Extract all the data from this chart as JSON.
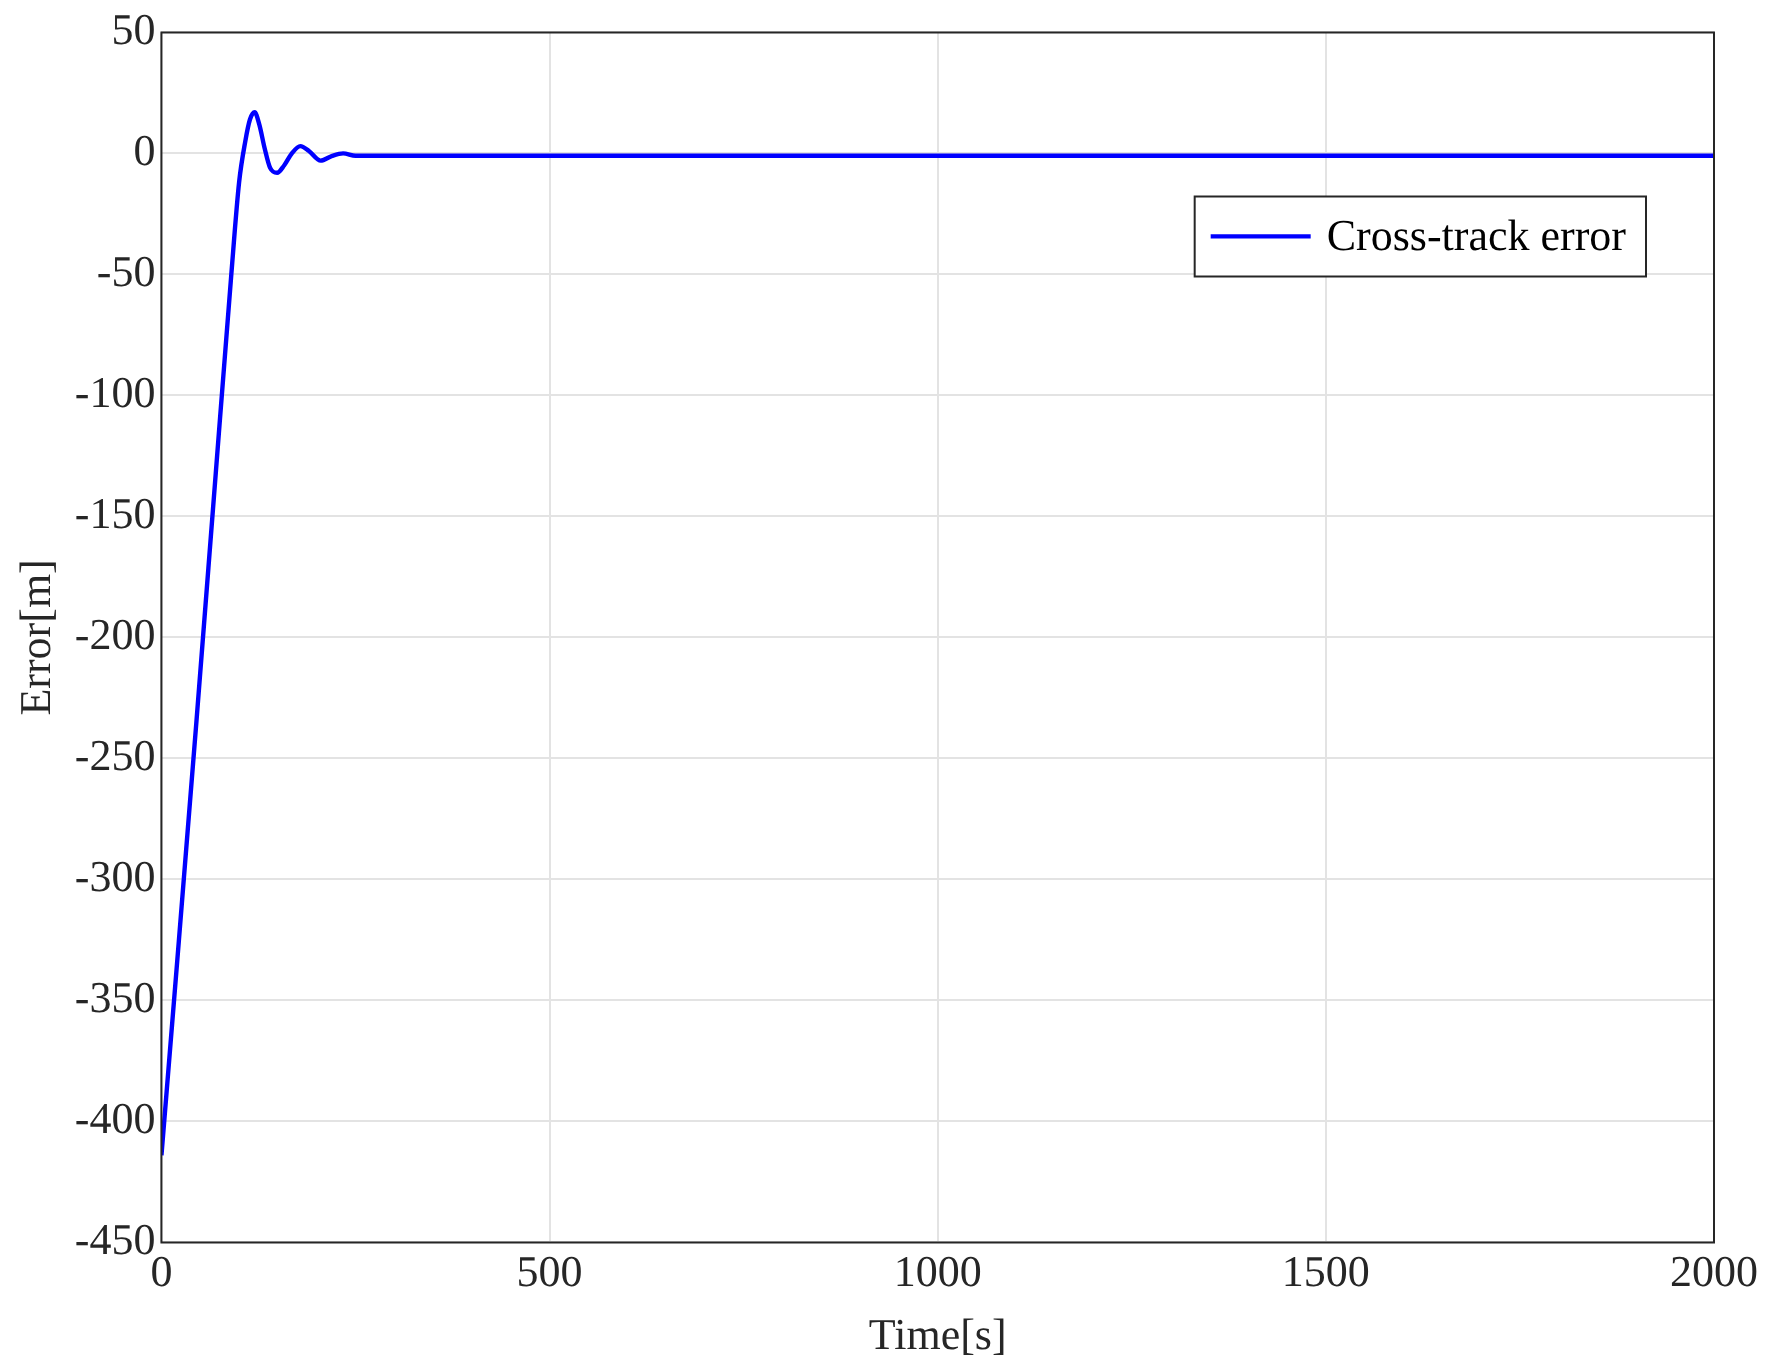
{
  "chart_data": {
    "type": "line",
    "xlabel": "Time[s]",
    "ylabel": "Error[m]",
    "x": [
      0,
      20,
      45,
      70,
      90,
      100,
      108,
      114,
      120,
      126,
      133,
      140,
      149,
      158,
      168,
      179,
      190,
      205,
      220,
      234,
      250,
      280,
      350,
      1000,
      2000
    ],
    "series": [
      {
        "name": "Cross-track error",
        "color": "#0000ff",
        "values": [
          -414,
          -335,
          -235,
          -132,
          -50,
          -12,
          5,
          14,
          17,
          12,
          2,
          -6,
          -8,
          -5,
          0,
          3,
          1,
          -3,
          -1,
          0,
          -1,
          -1,
          -1,
          -1,
          -1
        ]
      }
    ],
    "xlim": [
      0,
      2000
    ],
    "xticks": [
      0,
      500,
      1000,
      1500,
      2000
    ],
    "ylim": [
      -450,
      50
    ],
    "yticks": [
      -450,
      -400,
      -350,
      -300,
      -250,
      -200,
      -150,
      -100,
      -50,
      0,
      50
    ],
    "grid": true,
    "legend": "top right",
    "marker": "none",
    "line_style": "solid"
  }
}
